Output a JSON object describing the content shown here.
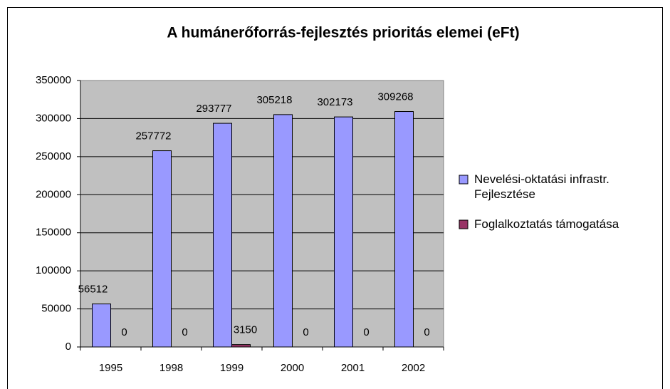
{
  "chart_data": {
    "type": "bar",
    "title": "A humánerőforrás-fejlesztés prioritás elemei (eFt)",
    "categories": [
      "1995",
      "1998",
      "1999",
      "2000",
      "2001",
      "2002"
    ],
    "series": [
      {
        "name": "Nevelési-oktatási infrastr. Fejlesztése",
        "color": "#9999ff",
        "values": [
          56512,
          257772,
          293777,
          305218,
          302173,
          309268
        ]
      },
      {
        "name": "Foglalkoztatás támogatása",
        "color": "#993366",
        "values": [
          0,
          0,
          3150,
          0,
          0,
          0
        ]
      }
    ],
    "ylim": [
      0,
      350000
    ],
    "yticks": [
      0,
      50000,
      100000,
      150000,
      200000,
      250000,
      300000,
      350000
    ],
    "grid": true,
    "legend": "right"
  }
}
